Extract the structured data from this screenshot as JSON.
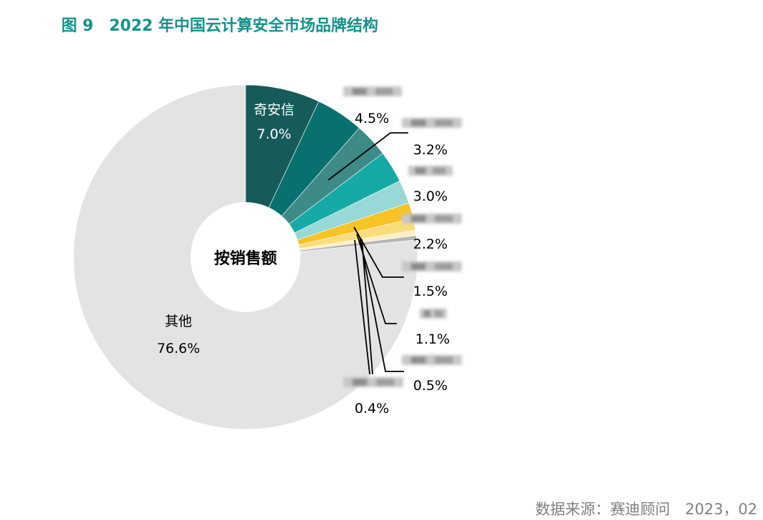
{
  "figure": {
    "title": "图 9　2022 年中国云计算安全市场品牌结构",
    "source": "数据来源：赛迪顾问　2023，02"
  },
  "chart_data": {
    "type": "pie",
    "center_label": "按销售额",
    "slices": [
      {
        "label": "奇安信",
        "value": 7.0,
        "value_text": "7.0%",
        "color": "#175a5a"
      },
      {
        "label": "",
        "value": 4.5,
        "value_text": "4.5%",
        "color": "#087170"
      },
      {
        "label": "",
        "value": 3.2,
        "value_text": "3.2%",
        "color": "#3e8a87"
      },
      {
        "label": "",
        "value": 3.0,
        "value_text": "3.0%",
        "color": "#16aaa6"
      },
      {
        "label": "",
        "value": 2.2,
        "value_text": "2.2%",
        "color": "#98d8d6"
      },
      {
        "label": "",
        "value": 1.5,
        "value_text": "1.5%",
        "color": "#f7c325"
      },
      {
        "label": "",
        "value": 1.1,
        "value_text": "1.1%",
        "color": "#fbdc7b"
      },
      {
        "label": "",
        "value": 0.5,
        "value_text": "0.5%",
        "color": "#fdf0c4"
      },
      {
        "label": "",
        "value": 0.4,
        "value_text": "0.4%",
        "color": "#b4b4b4"
      },
      {
        "label": "其他",
        "value": 76.6,
        "value_text": "76.6%",
        "color": "#e3e3e3"
      }
    ]
  }
}
